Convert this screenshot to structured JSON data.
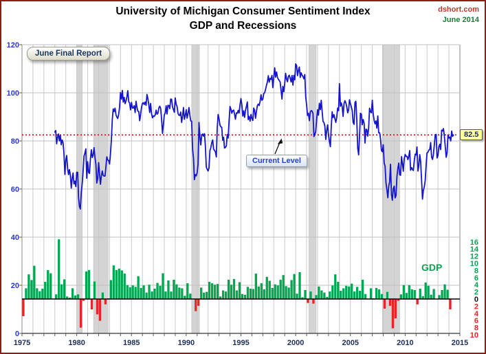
{
  "header": {
    "title_line1": "University of Michigan Consumer Sentiment Index",
    "title_line2": "GDP and Recessions",
    "source_site": "dshort.com",
    "source_date": "June 2014"
  },
  "annotations": {
    "report_badge": "June Final Report",
    "current_level_label": "Current Level",
    "current_value": "82.5",
    "gdp_label": "GDP"
  },
  "chart_data": {
    "type": "line+bar",
    "title": "University of Michigan Consumer Sentiment Index — GDP and Recessions",
    "grid": true,
    "legend_position": "none",
    "x_axis": {
      "range": [
        1975,
        2015
      ],
      "tick_labels": [
        1975,
        1980,
        1985,
        1990,
        1995,
        2000,
        2005,
        2010,
        2015
      ],
      "gridline_every_years": 1
    },
    "left_y_axis": {
      "series": "Consumer Sentiment Index",
      "range": [
        0,
        120
      ],
      "ticks": [
        0,
        20,
        40,
        60,
        80,
        100,
        120
      ],
      "color": "#2936cc"
    },
    "right_y_axis": {
      "series": "Real GDP quarterly % change (annualized)",
      "ticks": [
        16,
        14,
        12,
        10,
        8,
        6,
        4,
        2,
        0,
        -2,
        -4,
        -6,
        -8,
        -10
      ],
      "positive_color": "#00a651",
      "zero_color": "#111111",
      "negative_color": "#ee2222"
    },
    "recessions": [
      [
        1980.0,
        1980.5
      ],
      [
        1981.54,
        1982.87
      ],
      [
        1990.5,
        1991.21
      ],
      [
        2001.21,
        2001.87
      ],
      [
        2007.92,
        2009.5
      ]
    ],
    "current_level": {
      "value": 82.5,
      "line_color": "#cc0000"
    },
    "colors": {
      "sentiment_line": "#1414cc",
      "gdp_positive": "#00a651",
      "gdp_negative": "#ee2222",
      "recession_band": "#d4d4d4",
      "gridline": "#c9c9c9"
    },
    "sentiment": {
      "name": "Consumer Sentiment (monthly)",
      "start_year": 1978,
      "points_per_year": 12,
      "current_value": 82.5,
      "values": [
        83.7,
        84.3,
        78.8,
        81.6,
        82.9,
        80.0,
        82.4,
        78.4,
        80.4,
        79.3,
        75.0,
        66.1,
        72.1,
        73.9,
        68.4,
        66.0,
        68.1,
        65.8,
        60.4,
        64.5,
        66.7,
        62.1,
        63.3,
        61.0,
        67.0,
        66.9,
        56.5,
        52.7,
        51.7,
        58.7,
        62.3,
        67.3,
        73.7,
        75.0,
        76.7,
        64.5,
        71.4,
        66.9,
        66.5,
        72.4,
        76.3,
        73.1,
        74.1,
        77.2,
        73.1,
        70.3,
        62.5,
        64.3,
        71.0,
        66.5,
        62.0,
        65.5,
        67.5,
        65.7,
        65.4,
        65.4,
        69.3,
        73.4,
        72.1,
        71.9,
        70.4,
        74.6,
        80.8,
        89.1,
        93.3,
        92.2,
        93.6,
        90.9,
        89.9,
        89.3,
        91.1,
        94.2,
        100.1,
        97.4,
        101.0,
        96.1,
        98.1,
        95.5,
        96.6,
        98.3,
        100.9,
        96.3,
        95.7,
        92.9,
        96.0,
        93.7,
        93.7,
        94.6,
        91.8,
        96.5,
        94.0,
        92.4,
        92.2,
        88.4,
        90.9,
        93.9,
        95.6,
        95.9,
        95.1,
        96.2,
        94.8,
        99.3,
        97.7,
        94.9,
        91.8,
        95.6,
        91.4,
        89.6,
        90.4,
        90.2,
        90.8,
        92.8,
        91.1,
        91.5,
        93.7,
        94.4,
        93.6,
        89.3,
        83.1,
        86.8,
        90.8,
        91.6,
        94.6,
        91.2,
        94.8,
        94.7,
        93.4,
        97.4,
        97.3,
        94.1,
        93.0,
        91.9,
        97.9,
        95.2,
        94.3,
        91.5,
        90.7,
        90.6,
        92.0,
        87.7,
        90.4,
        93.9,
        89.0,
        90.5,
        93.0,
        89.5,
        91.3,
        93.9,
        90.6,
        88.3,
        88.2,
        76.4,
        72.8,
        63.9,
        66.0,
        65.5,
        66.8,
        70.4,
        87.7,
        81.8,
        78.3,
        82.1,
        82.9,
        82.0,
        83.0,
        78.3,
        69.1,
        68.2,
        67.5,
        68.8,
        76.0,
        77.2,
        79.2,
        80.4,
        76.6,
        76.1,
        75.5,
        73.3,
        85.3,
        91.0,
        89.3,
        86.6,
        85.9,
        85.6,
        80.3,
        81.5,
        77.0,
        77.3,
        77.9,
        82.7,
        81.2,
        88.2,
        94.3,
        93.2,
        91.5,
        92.6,
        92.8,
        91.2,
        89.0,
        91.7,
        91.5,
        92.7,
        91.6,
        95.1,
        97.6,
        95.1,
        90.3,
        92.5,
        89.8,
        92.7,
        94.4,
        96.2,
        88.9,
        90.2,
        88.2,
        91.0,
        89.3,
        88.5,
        93.7,
        92.7,
        89.4,
        92.4,
        94.7,
        95.3,
        94.7,
        96.5,
        99.2,
        96.9,
        97.4,
        99.7,
        100.0,
        101.4,
        103.2,
        104.5,
        107.1,
        104.4,
        106.0,
        105.6,
        107.2,
        102.1,
        106.6,
        110.4,
        106.5,
        108.7,
        106.5,
        105.6,
        105.2,
        104.4,
        100.9,
        97.4,
        102.7,
        100.5,
        103.9,
        108.1,
        105.7,
        104.6,
        106.8,
        107.3,
        106.0,
        104.5,
        107.2,
        103.2,
        107.2,
        105.4,
        112.0,
        111.3,
        107.1,
        109.2,
        110.7,
        106.4,
        108.3,
        107.3,
        106.8,
        105.8,
        107.6,
        98.4,
        94.7,
        90.6,
        91.5,
        88.4,
        92.0,
        92.6,
        92.4,
        91.5,
        81.8,
        82.7,
        83.9,
        88.8,
        93.0,
        90.7,
        95.7,
        93.0,
        96.9,
        92.4,
        88.1,
        87.6,
        86.1,
        80.6,
        84.2,
        86.7,
        82.4,
        79.9,
        77.6,
        86.0,
        92.1,
        89.7,
        90.9,
        89.3,
        87.7,
        89.6,
        93.7,
        92.6,
        103.8,
        94.4,
        95.8,
        94.2,
        90.2,
        95.6,
        96.7,
        95.9,
        94.2,
        91.7,
        92.8,
        97.1,
        95.5,
        94.1,
        92.6,
        87.7,
        86.9,
        96.0,
        96.5,
        89.1,
        76.9,
        74.2,
        81.6,
        91.5,
        91.2,
        86.7,
        88.9,
        87.4,
        79.1,
        84.9,
        84.7,
        82.0,
        85.4,
        93.6,
        92.1,
        91.7,
        96.9,
        91.3,
        88.4,
        87.1,
        88.3,
        85.3,
        90.4,
        83.4,
        83.4,
        80.9,
        76.1,
        75.5,
        78.4,
        70.8,
        69.5,
        62.6,
        59.8,
        56.4,
        61.2,
        63.0,
        70.3,
        57.6,
        55.3,
        60.1,
        61.2,
        56.3,
        57.3,
        65.1,
        68.7,
        70.8,
        66.0,
        65.7,
        73.5,
        70.6,
        67.4,
        72.5,
        74.4,
        73.6,
        73.6,
        72.2,
        73.6,
        76.0,
        67.8,
        68.9,
        68.2,
        67.7,
        71.6,
        74.5,
        74.2,
        77.5,
        67.5,
        69.8,
        74.3,
        71.5,
        63.7,
        55.8,
        59.5,
        60.8,
        63.7,
        69.9,
        75.0,
        75.3,
        76.2,
        76.4,
        79.3,
        73.2,
        72.3,
        74.3,
        78.3,
        82.6,
        82.7,
        72.9,
        73.8,
        77.6,
        78.6,
        76.4,
        84.5,
        84.1,
        85.1,
        82.1,
        77.5,
        73.2,
        75.1,
        82.5,
        81.2,
        81.6,
        80.0,
        84.1,
        81.9,
        82.5
      ]
    },
    "gdp": {
      "name": "Real GDP (quarterly % change, annualized)",
      "start_year": 1975,
      "points_per_year": 4,
      "values": [
        -4.8,
        3.0,
        6.9,
        5.3,
        9.3,
        3.0,
        2.2,
        2.9,
        4.8,
        8.1,
        7.2,
        0.0,
        1.3,
        16.7,
        4.1,
        5.5,
        0.7,
        0.4,
        3.0,
        1.0,
        1.3,
        -8.0,
        -0.5,
        7.7,
        8.1,
        -2.9,
        4.9,
        -4.3,
        -6.1,
        1.8,
        -1.5,
        0.2,
        5.3,
        9.4,
        8.1,
        8.5,
        8.0,
        7.1,
        3.9,
        3.3,
        3.8,
        3.4,
        6.4,
        3.1,
        3.8,
        1.8,
        4.0,
        2.1,
        2.9,
        4.5,
        3.7,
        7.2,
        2.1,
        5.2,
        2.1,
        5.4,
        4.1,
        3.2,
        3.0,
        0.9,
        4.4,
        1.5,
        0.0,
        -3.4,
        -1.9,
        3.2,
        1.8,
        2.0,
        4.8,
        4.4,
        4.0,
        4.2,
        0.7,
        2.4,
        2.1,
        5.4,
        4.0,
        5.6,
        2.4,
        4.7,
        1.4,
        1.2,
        3.4,
        2.9,
        2.8,
        7.1,
        3.5,
        4.4,
        2.7,
        6.2,
        5.1,
        3.1,
        4.1,
        3.8,
        5.4,
        6.7,
        3.6,
        3.2,
        5.3,
        7.0,
        1.5,
        7.5,
        0.5,
        2.5,
        -1.1,
        2.1,
        -1.3,
        1.1,
        3.5,
        2.4,
        1.8,
        0.6,
        2.1,
        3.8,
        6.9,
        4.8,
        2.3,
        3.0,
        3.7,
        3.5,
        4.3,
        2.1,
        3.4,
        2.3,
        5.4,
        1.4,
        0.1,
        3.0,
        0.2,
        3.1,
        2.7,
        1.4,
        -2.7,
        2.0,
        -1.9,
        -8.2,
        -5.4,
        -0.5,
        1.3,
        3.9,
        1.7,
        3.9,
        2.7,
        2.5,
        -1.5,
        2.9,
        0.8,
        4.6,
        3.7,
        1.2,
        2.8,
        0.1,
        1.1,
        2.5,
        4.1,
        2.6,
        -2.9
      ]
    }
  }
}
